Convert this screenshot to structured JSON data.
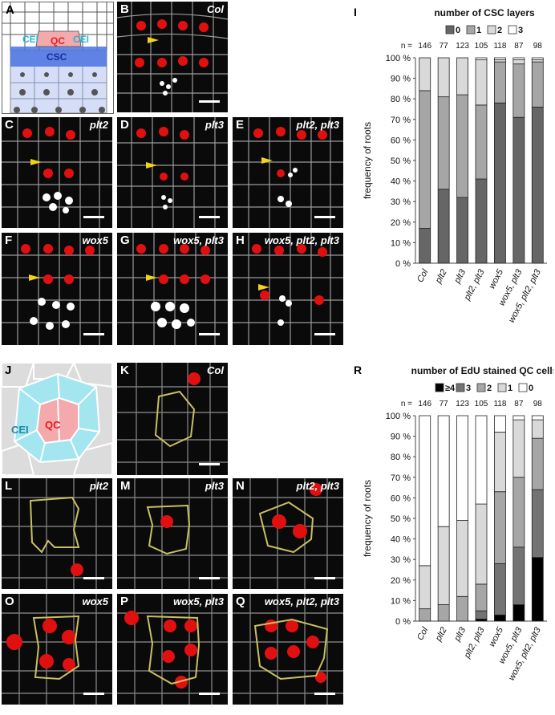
{
  "panels": {
    "A": {
      "label": "A",
      "cells": {
        "cei_left": "CEI",
        "qc": "QC",
        "cei_right": "CEI",
        "csc": "CSC"
      }
    },
    "B": {
      "label": "B",
      "genotype": "Col"
    },
    "C": {
      "label": "C",
      "genotype": "plt2"
    },
    "D": {
      "label": "D",
      "genotype": "plt3"
    },
    "E": {
      "label": "E",
      "genotype": "plt2, plt3"
    },
    "F": {
      "label": "F",
      "genotype": "wox5"
    },
    "G": {
      "label": "G",
      "genotype": "wox5, plt3"
    },
    "H": {
      "label": "H",
      "genotype": "wox5, plt2, plt3"
    },
    "J": {
      "label": "J",
      "cells": {
        "cei": "CEI",
        "qc": "QC"
      }
    },
    "K": {
      "label": "K",
      "genotype": "Col"
    },
    "L": {
      "label": "L",
      "genotype": "plt2"
    },
    "M": {
      "label": "M",
      "genotype": "plt3"
    },
    "N": {
      "label": "N",
      "genotype": "plt2, plt3"
    },
    "O": {
      "label": "O",
      "genotype": "wox5"
    },
    "P": {
      "label": "P",
      "genotype": "wox5, plt3"
    },
    "Q": {
      "label": "Q",
      "genotype": "wox5, plt2, plt3"
    }
  },
  "colors": {
    "red_signal": "#e01010",
    "csc_blue": "#4a73e0",
    "columella": "#d6def7",
    "qc_pink": "#f4a9ad",
    "cei_cyan": "#a4e6ef",
    "outline_yellow": "#c8c060"
  },
  "chart_data": [
    {
      "panel": "I",
      "type": "bar",
      "stacked": true,
      "title": "number of CSC layers",
      "ylabel": "frequency of roots",
      "ylim": [
        0,
        100
      ],
      "yticks": [
        "0 %",
        "10 %",
        "20 %",
        "30 %",
        "40 %",
        "50 %",
        "60 %",
        "70 %",
        "80 %",
        "90 %",
        "100 %"
      ],
      "categories": [
        "Col",
        "plt2",
        "plt3",
        "plt2, plt3",
        "wox5",
        "wox5, plt3",
        "wox5, plt2, plt3"
      ],
      "n_prefix": "n = ",
      "n": [
        "146",
        "77",
        "123",
        "105",
        "118",
        "87",
        "98"
      ],
      "series": [
        {
          "name": "0",
          "color": "#666666",
          "values": [
            17,
            36,
            32,
            41,
            78,
            71,
            76
          ]
        },
        {
          "name": "1",
          "color": "#a6a6a6",
          "values": [
            67,
            45,
            50,
            36,
            20,
            26,
            22
          ]
        },
        {
          "name": "2",
          "color": "#d9d9d9",
          "values": [
            16,
            19,
            18,
            22,
            1,
            2,
            1
          ]
        },
        {
          "name": "3",
          "color": "#ffffff",
          "values": [
            0,
            0,
            0,
            1,
            1,
            1,
            1
          ]
        }
      ],
      "legend_placement": "top"
    },
    {
      "panel": "R",
      "type": "bar",
      "stacked": true,
      "title": "number of EdU stained QC cells",
      "ylabel": "frequency of roots",
      "ylim": [
        0,
        100
      ],
      "yticks": [
        "0 %",
        "10 %",
        "20 %",
        "30 %",
        "40 %",
        "50 %",
        "60 %",
        "70 %",
        "80 %",
        "90 %",
        "100 %"
      ],
      "categories": [
        "Col",
        "plt2",
        "plt3",
        "plt2, plt3",
        "wox5",
        "wox5, plt3",
        "wox5, plt2, plt3"
      ],
      "n_prefix": "n = ",
      "n": [
        "146",
        "77",
        "123",
        "105",
        "118",
        "87",
        "98"
      ],
      "series": [
        {
          "name": "≥4",
          "color": "#000000",
          "values": [
            0,
            0,
            0,
            1,
            3,
            8,
            31
          ]
        },
        {
          "name": "3",
          "color": "#737373",
          "values": [
            0,
            0,
            0,
            4,
            25,
            28,
            33
          ]
        },
        {
          "name": "2",
          "color": "#a6a6a6",
          "values": [
            6,
            8,
            12,
            13,
            35,
            34,
            25
          ]
        },
        {
          "name": "1",
          "color": "#d9d9d9",
          "values": [
            21,
            38,
            37,
            39,
            29,
            28,
            9
          ]
        },
        {
          "name": "0",
          "color": "#ffffff",
          "values": [
            73,
            54,
            51,
            43,
            8,
            2,
            2
          ]
        }
      ],
      "legend_placement": "top"
    }
  ]
}
